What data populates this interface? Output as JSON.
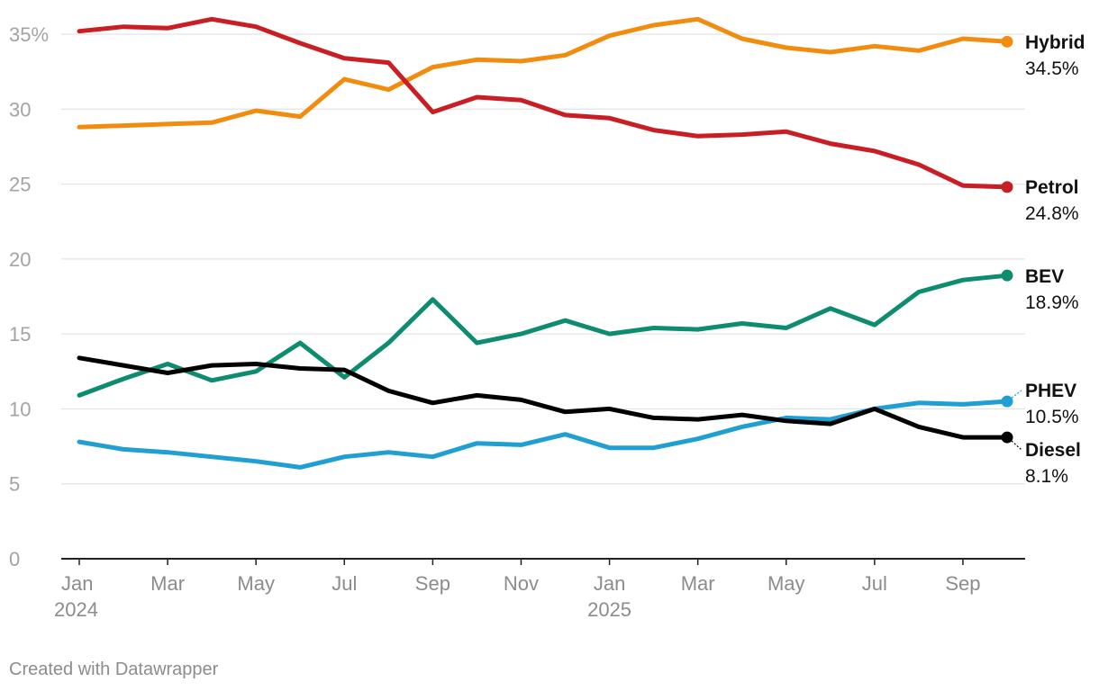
{
  "chart_data": {
    "type": "line",
    "title": "",
    "xlabel": "",
    "ylabel": "",
    "ylim": [
      0,
      35
    ],
    "y_ticks": [
      0,
      5,
      10,
      15,
      20,
      25,
      30,
      35
    ],
    "y_tick_labels": [
      "0",
      "5",
      "10",
      "15",
      "20",
      "25",
      "30",
      "35%"
    ],
    "x_tick_labels": [
      {
        "index": 0,
        "line1": "Jan",
        "line2": "2024"
      },
      {
        "index": 2,
        "line1": "Mar",
        "line2": ""
      },
      {
        "index": 4,
        "line1": "May",
        "line2": ""
      },
      {
        "index": 6,
        "line1": "Jul",
        "line2": ""
      },
      {
        "index": 8,
        "line1": "Sep",
        "line2": ""
      },
      {
        "index": 10,
        "line1": "Nov",
        "line2": ""
      },
      {
        "index": 12,
        "line1": "Jan",
        "line2": "2025"
      },
      {
        "index": 14,
        "line1": "Mar",
        "line2": ""
      },
      {
        "index": 16,
        "line1": "May",
        "line2": ""
      },
      {
        "index": 18,
        "line1": "Jul",
        "line2": ""
      },
      {
        "index": 20,
        "line1": "Sep",
        "line2": ""
      }
    ],
    "x": [
      "2024-01",
      "2024-02",
      "2024-03",
      "2024-04",
      "2024-05",
      "2024-06",
      "2024-07",
      "2024-08",
      "2024-09",
      "2024-10",
      "2024-11",
      "2024-12",
      "2025-01",
      "2025-02",
      "2025-03",
      "2025-04",
      "2025-05",
      "2025-06",
      "2025-07",
      "2025-08",
      "2025-09",
      "2025-10"
    ],
    "series": [
      {
        "name": "Hybrid",
        "label": "34.5%",
        "color": "#f28c0f",
        "values": [
          28.8,
          28.9,
          29.0,
          29.1,
          29.9,
          29.5,
          32.0,
          31.3,
          32.8,
          33.3,
          33.2,
          33.6,
          34.9,
          35.6,
          36.0,
          34.7,
          34.1,
          33.8,
          34.2,
          33.9,
          34.7,
          34.5
        ]
      },
      {
        "name": "Petrol",
        "label": "24.8%",
        "color": "#c91f24",
        "values": [
          35.2,
          35.5,
          35.4,
          36.0,
          35.5,
          34.4,
          33.4,
          33.1,
          29.8,
          30.8,
          30.6,
          29.6,
          29.4,
          28.6,
          28.2,
          28.3,
          28.5,
          27.7,
          27.2,
          26.3,
          24.9,
          24.8
        ]
      },
      {
        "name": "BEV",
        "label": "18.9%",
        "color": "#0e8c6f",
        "values": [
          10.9,
          12.0,
          13.0,
          11.9,
          12.5,
          14.4,
          12.1,
          14.4,
          17.3,
          14.4,
          15.0,
          15.9,
          15.0,
          15.4,
          15.3,
          15.7,
          15.4,
          16.7,
          15.6,
          17.8,
          18.6,
          18.9
        ]
      },
      {
        "name": "PHEV",
        "label": "10.5%",
        "color": "#1f9fd2",
        "values": [
          7.8,
          7.3,
          7.1,
          6.8,
          6.5,
          6.1,
          6.8,
          7.1,
          6.8,
          7.7,
          7.6,
          8.3,
          7.4,
          7.4,
          8.0,
          8.8,
          9.4,
          9.3,
          10.0,
          10.4,
          10.3,
          10.5
        ]
      },
      {
        "name": "Diesel",
        "label": "8.1%",
        "color": "#000000",
        "values": [
          13.4,
          12.9,
          12.4,
          12.9,
          13.0,
          12.7,
          12.6,
          11.2,
          10.4,
          10.9,
          10.6,
          9.8,
          10.0,
          9.4,
          9.3,
          9.6,
          9.2,
          9.0,
          10.0,
          8.8,
          8.1,
          8.1
        ]
      }
    ]
  },
  "footer": {
    "credit": "Created with Datawrapper"
  }
}
